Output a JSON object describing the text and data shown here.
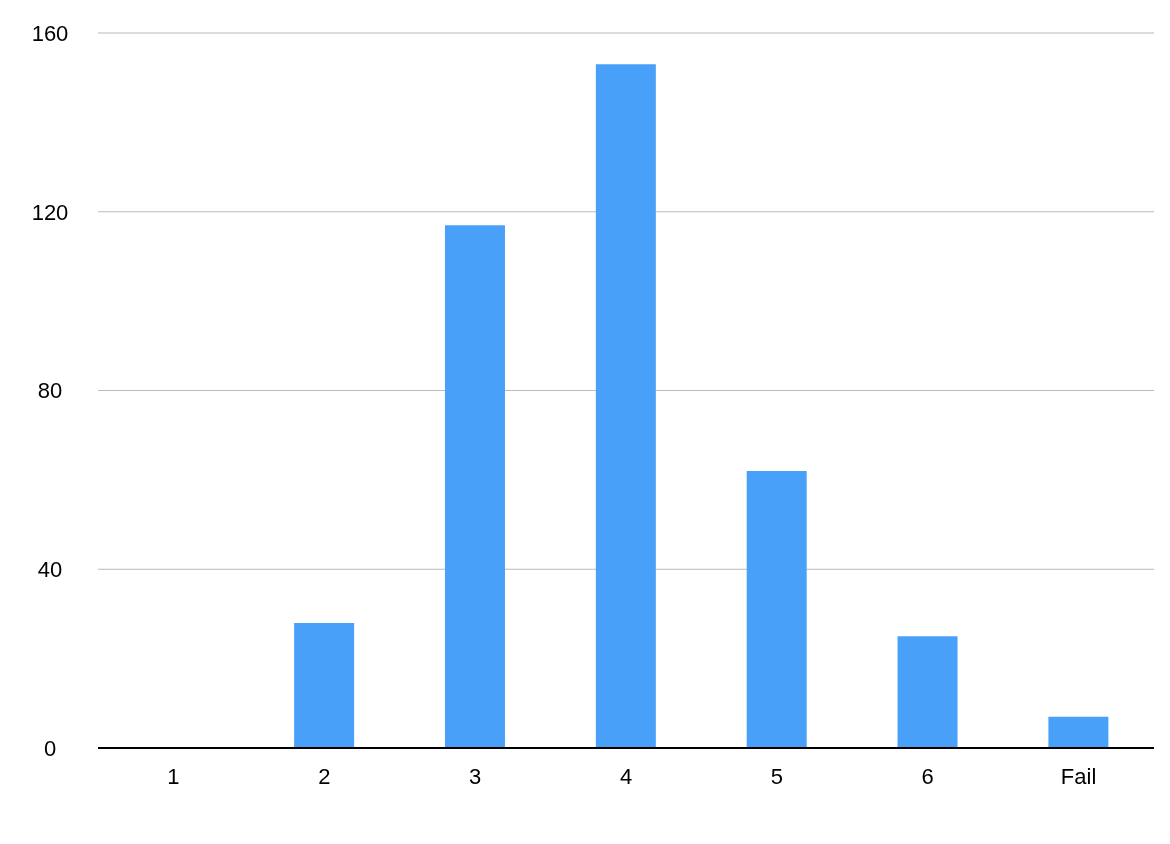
{
  "chart_data": {
    "type": "bar",
    "categories": [
      "1",
      "2",
      "3",
      "4",
      "5",
      "6",
      "Fail"
    ],
    "values": [
      0,
      28,
      117,
      153,
      62,
      25,
      7
    ],
    "color": "#48a0f8",
    "ylim": [
      0,
      160
    ],
    "yticks": [
      0,
      40,
      80,
      120,
      160
    ],
    "grid": "y"
  }
}
